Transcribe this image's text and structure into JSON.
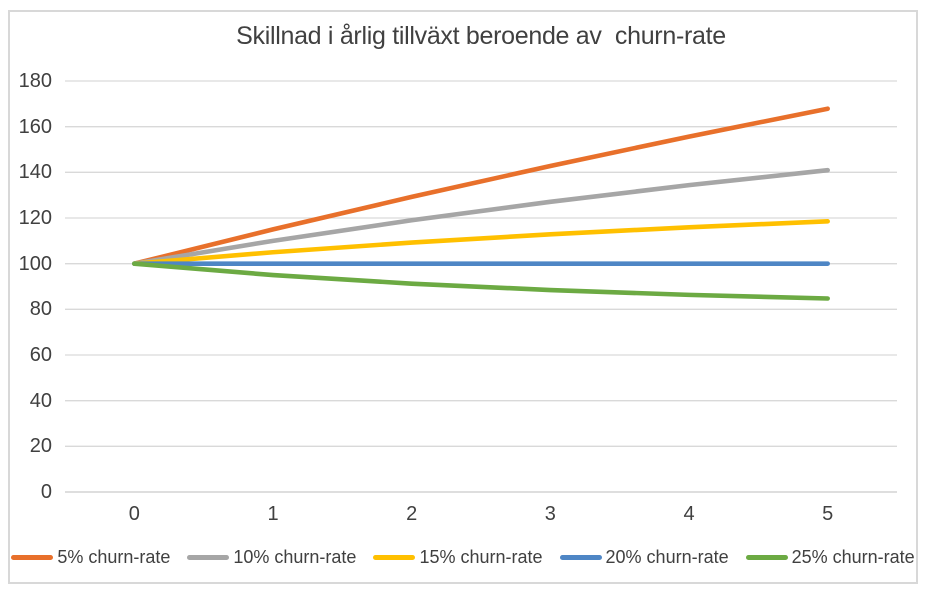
{
  "chart": {
    "title": "Skillnad i årlig tillväxt beroende av  churn-rate"
  },
  "chart_data": {
    "type": "line",
    "title": "Skillnad i årlig tillväxt beroende av  churn-rate",
    "categories": [
      "0",
      "1",
      "2",
      "3",
      "4",
      "5"
    ],
    "series": [
      {
        "name": "5% churn-rate",
        "color": "#e8702b",
        "values": [
          100,
          115,
          129.25,
          142.79,
          155.65,
          167.87
        ]
      },
      {
        "name": "10% churn-rate",
        "color": "#a6a6a6",
        "values": [
          100,
          110,
          119,
          127.1,
          134.39,
          140.95
        ]
      },
      {
        "name": "15% churn-rate",
        "color": "#ffc000",
        "values": [
          100,
          105,
          109.25,
          112.86,
          115.93,
          118.54
        ]
      },
      {
        "name": "20% churn-rate",
        "color": "#4e86c5",
        "values": [
          100,
          100,
          100,
          100,
          100,
          100
        ]
      },
      {
        "name": "25% churn-rate",
        "color": "#6caa43",
        "values": [
          100,
          95,
          91.25,
          88.44,
          86.33,
          84.75
        ]
      }
    ],
    "xlabel": "",
    "ylabel": "",
    "ylim": [
      0,
      180
    ],
    "ytick_step": 20,
    "yticks": [
      "0",
      "20",
      "40",
      "60",
      "80",
      "100",
      "120",
      "140",
      "160",
      "180"
    ],
    "grid": true,
    "grid_color": "#d9d9d9",
    "axis_line_color": "#c9c9c9",
    "legend_position": "bottom",
    "text_color": "#404040",
    "background": "#ffffff",
    "border_color": "#d8d8d8"
  }
}
